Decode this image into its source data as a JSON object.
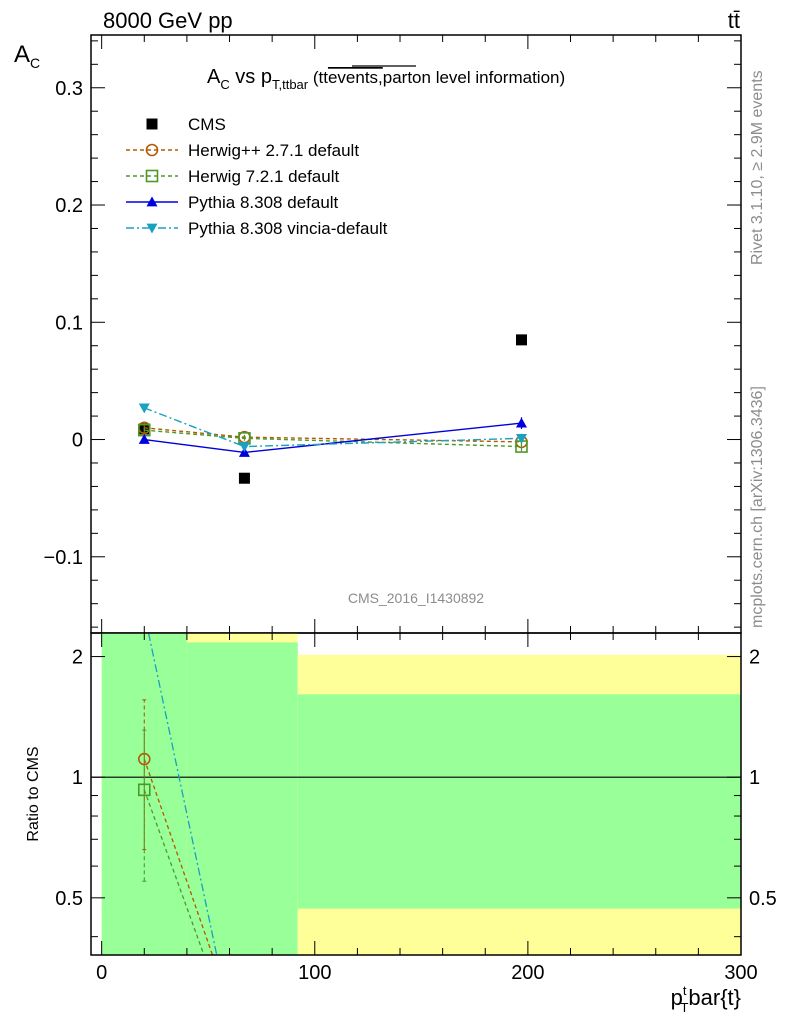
{
  "header": {
    "energy_label": "8000 GeV pp",
    "process_label": "tt̄"
  },
  "side_labels": {
    "rivet": "Rivet 3.1.10, ≥ 2.9M events",
    "mcplots": "mcplots.cern.ch [arXiv:1306.3436]"
  },
  "watermark": "CMS_2016_I1430892",
  "colors": {
    "cms": "#000000",
    "herwigpp": "#b35900",
    "herwig7": "#4a9a2a",
    "pythia": "#0000dd",
    "vincia": "#1aa0c0",
    "band_green": "#99ff99",
    "band_yellow": "#ffff99"
  },
  "chart_data": [
    {
      "type": "scatter",
      "title": "A_C vs p_T,ttbar (tt̄ events, parton level information)",
      "title_parts": {
        "main": "A",
        "main_sub": "C",
        "vs": " vs p",
        "vs_sub": "T,ttbar",
        "paren_open": " (",
        "tt": "tt",
        "overlined": "events,",
        "rest": "parton level information)"
      },
      "ylabel": "A_C",
      "ylabel_parts": {
        "main": "A",
        "sub": "C"
      },
      "xlim": [
        -5,
        300
      ],
      "ylim": [
        -0.165,
        0.345
      ],
      "yticks": [
        -0.1,
        0,
        0.1,
        0.2,
        0.3
      ],
      "ytick_labels": [
        "−0.1",
        "0",
        "0.1",
        "0.2",
        "0.3"
      ],
      "legend_position": "top-left",
      "series": [
        {
          "name": "CMS",
          "style": "data",
          "x": [
            20,
            67,
            197
          ],
          "y": [
            0.009,
            -0.033,
            0.085
          ],
          "yerr": [
            0.004,
            0.004,
            0.004
          ]
        },
        {
          "name": "Herwig++ 2.7.1 default",
          "style": "herwigpp",
          "x": [
            20,
            67,
            197
          ],
          "y": [
            0.01,
            0.002,
            -0.002
          ],
          "yerr": [
            0.002,
            0.002,
            0.003
          ]
        },
        {
          "name": "Herwig 7.2.1 default",
          "style": "herwig7",
          "x": [
            20,
            67,
            197
          ],
          "y": [
            0.008,
            0.001,
            -0.006
          ],
          "yerr": [
            0.002,
            0.002,
            0.004
          ]
        },
        {
          "name": "Pythia 8.308 default",
          "style": "pythia",
          "x": [
            20,
            67,
            197
          ],
          "y": [
            0.0,
            -0.011,
            0.014
          ],
          "yerr": [
            0.002,
            0.002,
            0.005
          ]
        },
        {
          "name": "Pythia 8.308 vincia-default",
          "style": "vincia",
          "x": [
            20,
            67,
            197
          ],
          "y": [
            0.027,
            -0.006,
            0.001
          ],
          "yerr": [
            0.002,
            0.002,
            0.004
          ]
        }
      ]
    },
    {
      "type": "line",
      "ylabel": "Ratio to CMS",
      "xlabel": "p_T^t bar{t}",
      "xlabel_parts": {
        "p": "p",
        "sub": "T",
        "sup": "t",
        "rest": "bar{t}"
      },
      "xlim": [
        -5,
        300
      ],
      "ylim": [
        0.36,
        2.29
      ],
      "xticks": [
        0,
        100,
        200,
        300
      ],
      "xtick_labels": [
        "0",
        "100",
        "200",
        "300"
      ],
      "yticks": [
        0.5,
        1,
        2
      ],
      "ytick_labels": [
        "0.5",
        "1",
        "2"
      ],
      "bands": [
        {
          "x0": 0,
          "x1": 40,
          "yellow": [
            0.36,
            2.29
          ],
          "green": [
            0.36,
            2.29
          ]
        },
        {
          "x0": 40,
          "x1": 92,
          "yellow": [
            0.36,
            2.29
          ],
          "green": [
            0.36,
            2.17
          ]
        },
        {
          "x0": 92,
          "x1": 300,
          "yellow": [
            0.36,
            2.02
          ],
          "green": [
            0.47,
            1.61
          ]
        }
      ],
      "series": [
        {
          "name": "Herwig++ 2.7.1 default",
          "style": "herwigpp",
          "x": [
            20,
            52
          ],
          "y": [
            1.11,
            0.36
          ],
          "yerr": [
            0.45,
            null
          ]
        },
        {
          "name": "Herwig 7.2.1 default",
          "style": "herwig7",
          "x": [
            20,
            48
          ],
          "y": [
            0.93,
            0.36
          ],
          "yerr": [
            0.38,
            null
          ]
        },
        {
          "name": "Pythia 8.308 vincia-default",
          "style": "vincia",
          "x": [
            22,
            54
          ],
          "y": [
            2.29,
            0.36
          ],
          "yerr": [
            null,
            null
          ]
        }
      ]
    }
  ]
}
